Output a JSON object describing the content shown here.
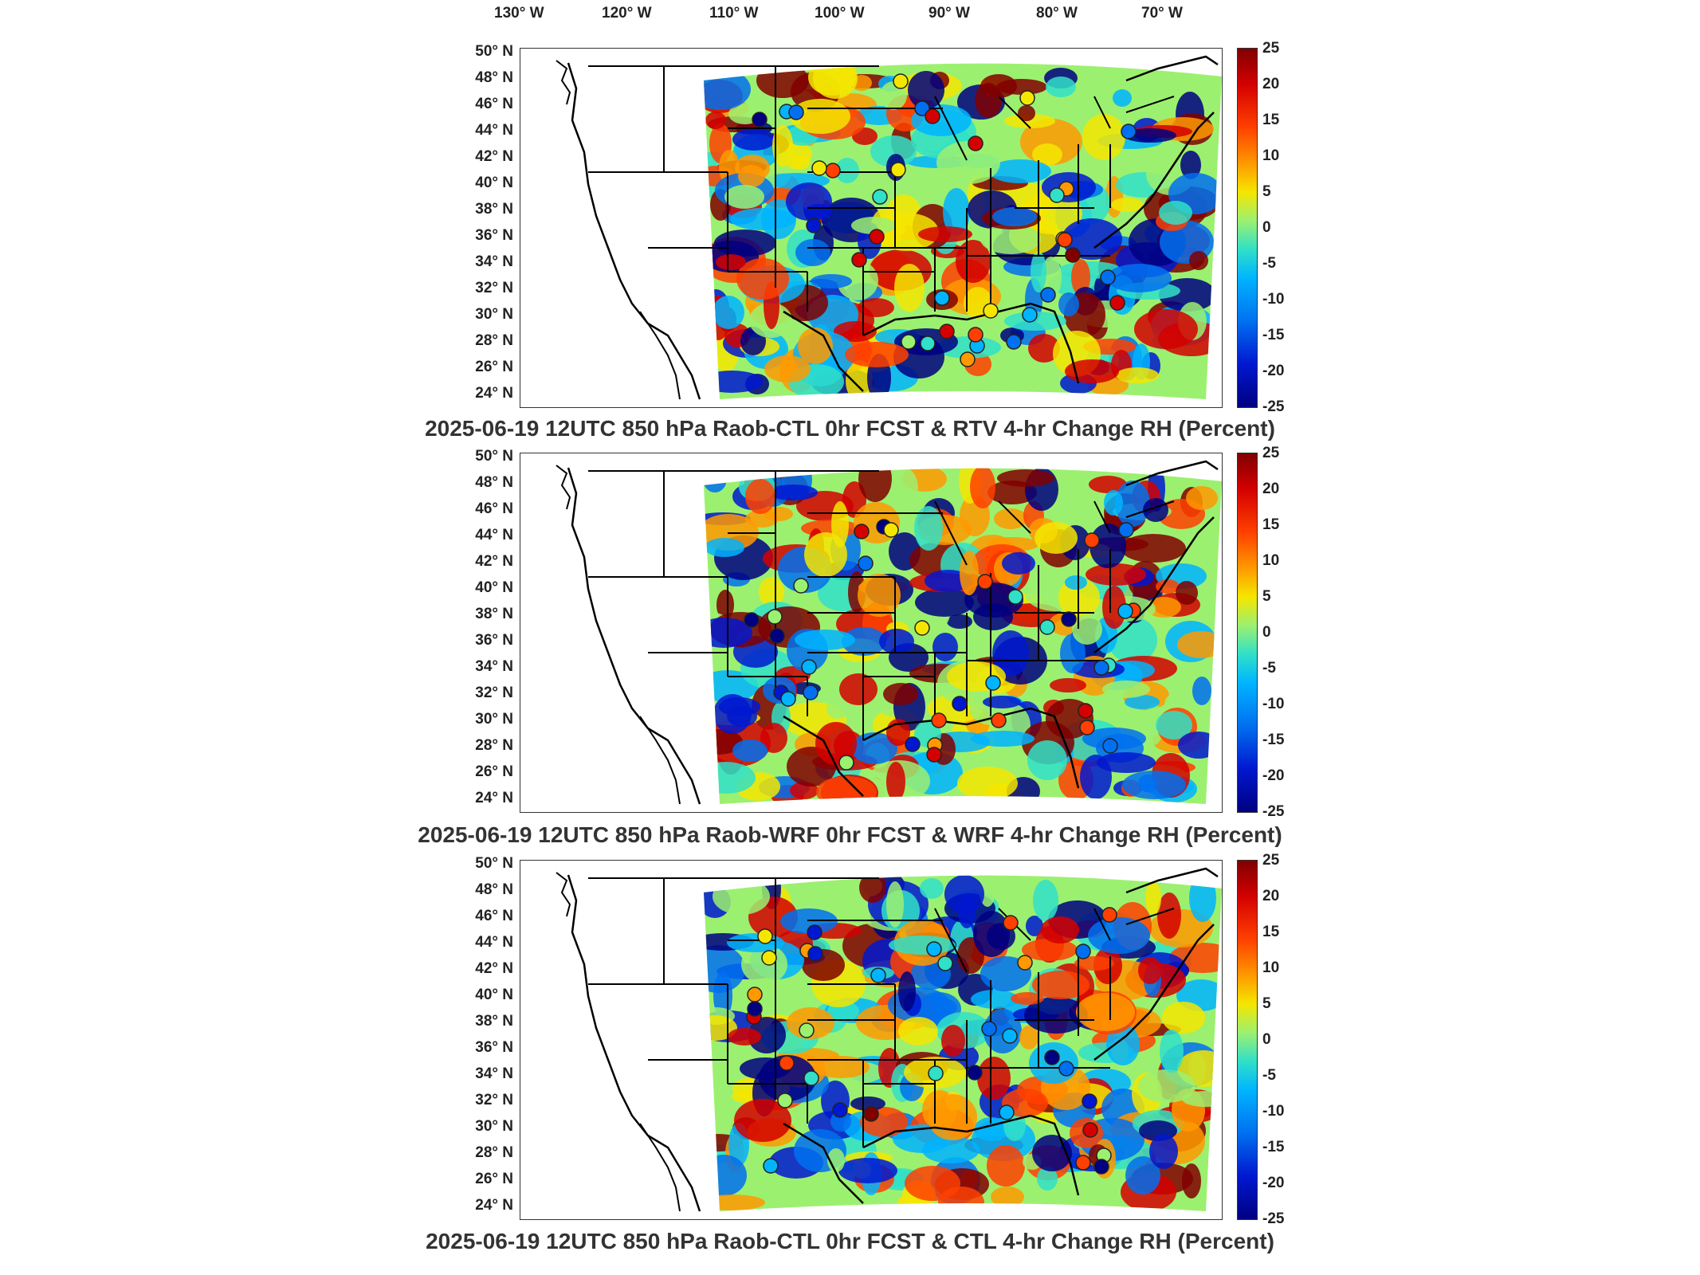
{
  "lon_labels": [
    "130° W",
    "120° W",
    "110° W",
    "100° W",
    "90° W",
    "80° W",
    "70° W"
  ],
  "lat_labels": [
    "50° N",
    "48° N",
    "46° N",
    "44° N",
    "42° N",
    "40° N",
    "38° N",
    "36° N",
    "34° N",
    "32° N",
    "30° N",
    "28° N",
    "26° N",
    "24° N"
  ],
  "colorbar_ticks": [
    "25",
    "20",
    "15",
    "10",
    "5",
    "0",
    "-5",
    "-10",
    "-15",
    "-20",
    "-25"
  ],
  "colormap": [
    "#800000",
    "#d40000",
    "#ff4000",
    "#ff9900",
    "#f5e600",
    "#9cf070",
    "#30e0c8",
    "#00b4ff",
    "#0070f0",
    "#0018d0",
    "#000080"
  ],
  "panels": [
    {
      "title": "2025-06-19 12UTC 850 hPa Raob-CTL 0hr FCST & RTV 4-hr Change RH (Percent)"
    },
    {
      "title": "2025-06-19 12UTC 850 hPa Raob-WRF 0hr FCST & WRF 4-hr Change RH (Percent)"
    },
    {
      "title": "2025-06-19 12UTC 850 hPa Raob-CTL 0hr FCST & CTL 4-hr Change RH (Percent)"
    }
  ]
}
